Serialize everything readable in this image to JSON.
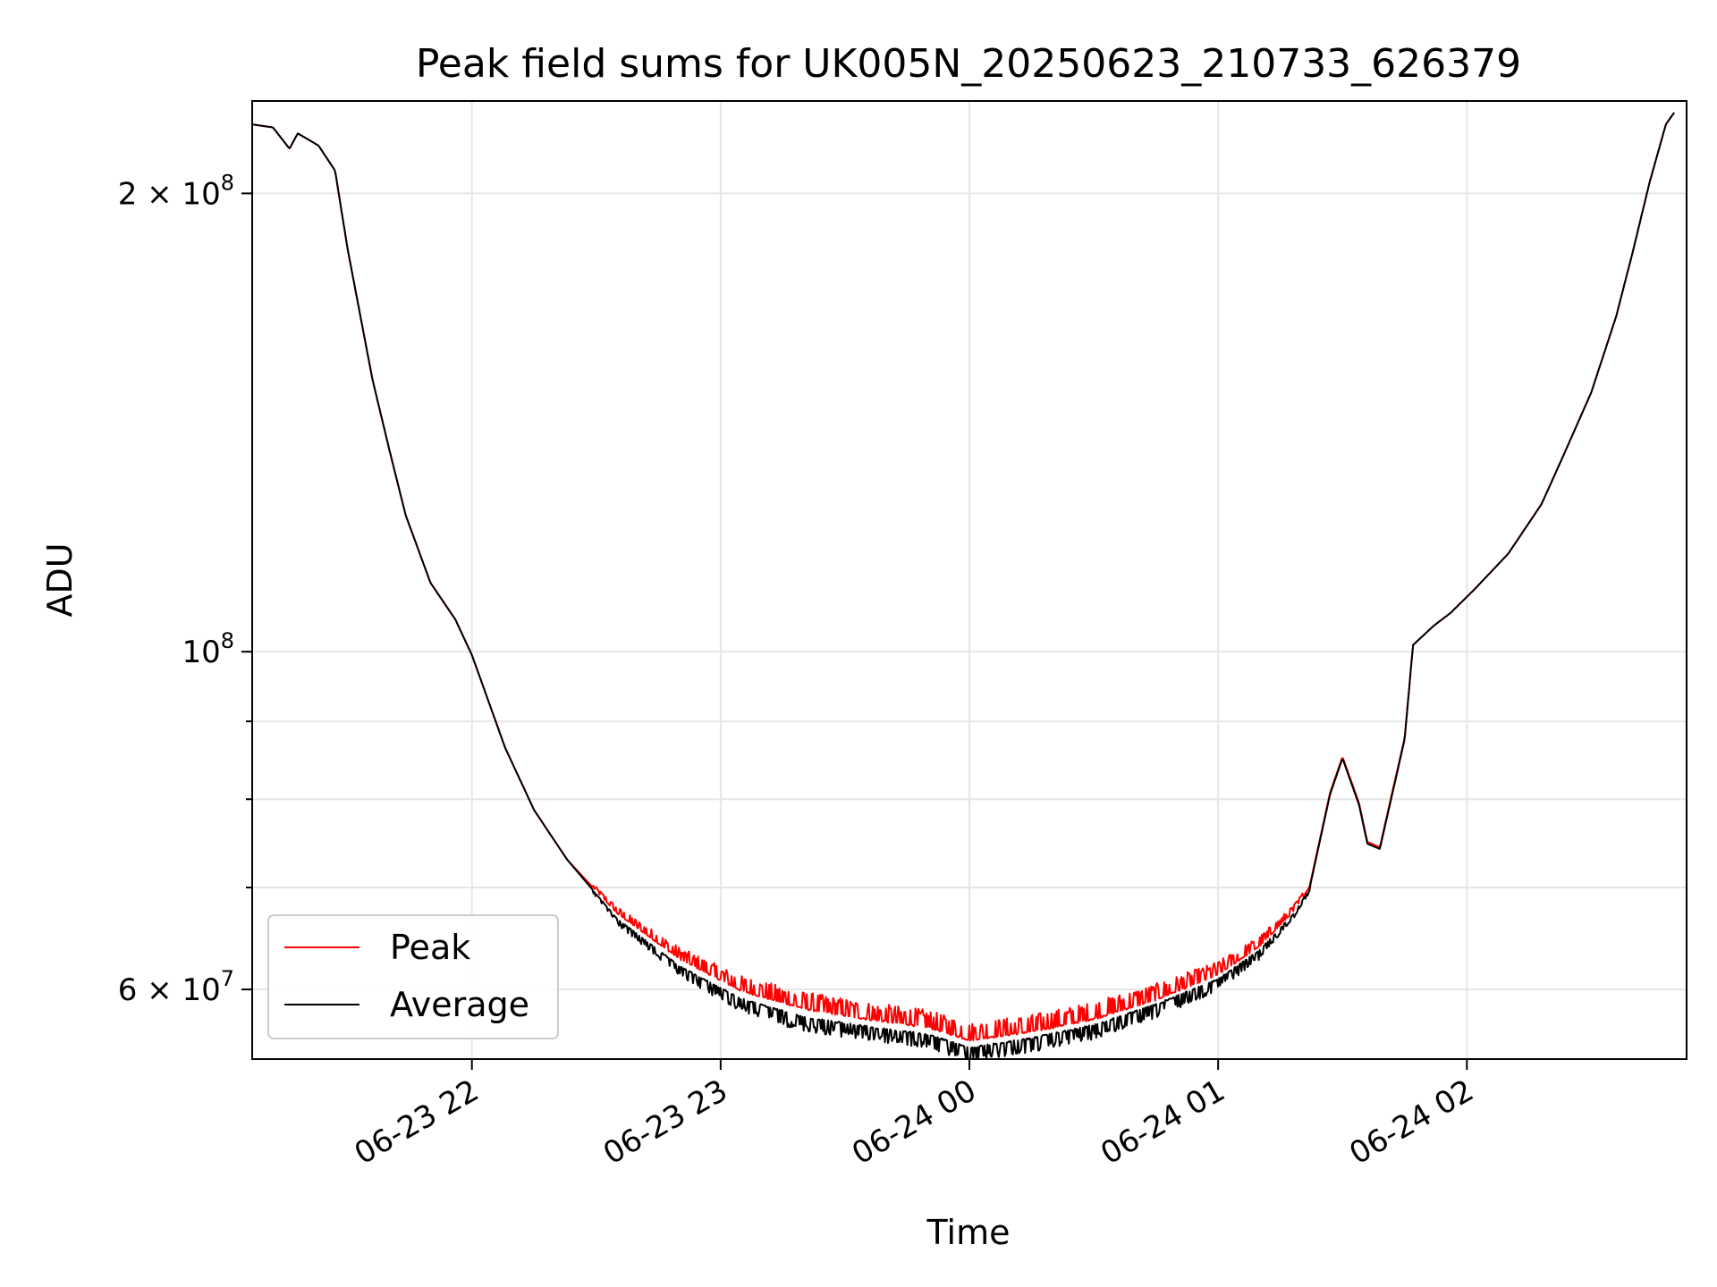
{
  "chart_data": {
    "type": "line",
    "title": "Peak field sums for UK005N_20250623_210733_626379",
    "xlabel": "Time",
    "ylabel": "ADU",
    "x_scale": "time",
    "y_scale": "log",
    "xlim": [
      "2025-06-23 21:07",
      "2025-06-24 02:53"
    ],
    "ylim": [
      54000000,
      230000000
    ],
    "grid": true,
    "legend_position": "lower-left",
    "x_ticks": [
      {
        "value": "2025-06-23 22:00",
        "label": "06-23 22"
      },
      {
        "value": "2025-06-23 23:00",
        "label": "06-23 23"
      },
      {
        "value": "2025-06-24 00:00",
        "label": "06-24 00"
      },
      {
        "value": "2025-06-24 01:00",
        "label": "06-24 01"
      },
      {
        "value": "2025-06-24 02:00",
        "label": "06-24 02"
      }
    ],
    "y_ticks": [
      {
        "value": 200000000,
        "label_base": "2 × 10",
        "label_exp": "8"
      },
      {
        "value": 100000000,
        "label_base": "10",
        "label_exp": "8"
      },
      {
        "value": 60000000,
        "label_base": "6 × 10",
        "label_exp": "7"
      }
    ],
    "y_minor_ticks": [
      70000000,
      80000000,
      90000000
    ],
    "series": [
      {
        "name": "Peak",
        "color": "#ff0000",
        "noise": "up",
        "x": [
          "2025-06-23 21:07",
          "2025-06-23 21:12",
          "2025-06-23 21:16",
          "2025-06-23 21:18",
          "2025-06-23 21:23",
          "2025-06-23 21:27",
          "2025-06-23 21:30",
          "2025-06-23 21:36",
          "2025-06-23 21:40",
          "2025-06-23 21:44",
          "2025-06-23 21:50",
          "2025-06-23 21:56",
          "2025-06-23 22:00",
          "2025-06-23 22:08",
          "2025-06-23 22:15",
          "2025-06-23 22:23",
          "2025-06-23 22:35",
          "2025-06-23 22:50",
          "2025-06-23 23:05",
          "2025-06-23 23:20",
          "2025-06-23 23:35",
          "2025-06-23 23:50",
          "2025-06-24 00:00",
          "2025-06-24 00:15",
          "2025-06-24 00:30",
          "2025-06-24 00:45",
          "2025-06-24 01:00",
          "2025-06-24 01:10",
          "2025-06-24 01:18",
          "2025-06-24 01:22",
          "2025-06-24 01:27",
          "2025-06-24 01:30",
          "2025-06-24 01:34",
          "2025-06-24 01:36",
          "2025-06-24 01:39",
          "2025-06-24 01:45",
          "2025-06-24 01:47",
          "2025-06-24 01:52",
          "2025-06-24 01:56",
          "2025-06-24 02:02",
          "2025-06-24 02:10",
          "2025-06-24 02:18",
          "2025-06-24 02:23",
          "2025-06-24 02:30",
          "2025-06-24 02:36",
          "2025-06-24 02:40",
          "2025-06-24 02:44",
          "2025-06-24 02:48",
          "2025-06-24 02:50"
        ],
        "y": [
          222000000,
          221000000,
          214000000,
          219000000,
          215000000,
          207000000,
          184000000,
          151000000,
          136000000,
          123000000,
          111000000,
          105000000,
          99500000,
          86500000,
          78700000,
          73000000,
          67300000,
          62800000,
          59800000,
          58200000,
          57300000,
          56600000,
          55500000,
          56200000,
          57300000,
          59000000,
          61300000,
          64000000,
          67400000,
          70000000,
          80800000,
          85300000,
          79500000,
          75000000,
          74400000,
          87800000,
          101000000,
          104000000,
          106000000,
          110000000,
          116000000,
          125000000,
          134000000,
          148000000,
          166000000,
          183000000,
          203000000,
          222000000,
          226000000
        ]
      },
      {
        "name": "Average",
        "color": "#000000",
        "noise": "down",
        "x": [
          "2025-06-23 21:07",
          "2025-06-23 21:12",
          "2025-06-23 21:16",
          "2025-06-23 21:18",
          "2025-06-23 21:23",
          "2025-06-23 21:27",
          "2025-06-23 21:30",
          "2025-06-23 21:36",
          "2025-06-23 21:40",
          "2025-06-23 21:44",
          "2025-06-23 21:50",
          "2025-06-23 21:56",
          "2025-06-23 22:00",
          "2025-06-23 22:08",
          "2025-06-23 22:15",
          "2025-06-23 22:23",
          "2025-06-23 22:35",
          "2025-06-23 22:50",
          "2025-06-23 23:05",
          "2025-06-23 23:20",
          "2025-06-23 23:35",
          "2025-06-23 23:50",
          "2025-06-24 00:00",
          "2025-06-24 00:15",
          "2025-06-24 00:30",
          "2025-06-24 00:45",
          "2025-06-24 01:00",
          "2025-06-24 01:10",
          "2025-06-24 01:18",
          "2025-06-24 01:22",
          "2025-06-24 01:27",
          "2025-06-24 01:30",
          "2025-06-24 01:34",
          "2025-06-24 01:36",
          "2025-06-24 01:39",
          "2025-06-24 01:45",
          "2025-06-24 01:47",
          "2025-06-24 01:52",
          "2025-06-24 01:56",
          "2025-06-24 02:02",
          "2025-06-24 02:10",
          "2025-06-24 02:18",
          "2025-06-24 02:23",
          "2025-06-24 02:30",
          "2025-06-24 02:36",
          "2025-06-24 02:40",
          "2025-06-24 02:44",
          "2025-06-24 02:48",
          "2025-06-24 02:50"
        ],
        "y": [
          222000000,
          221000000,
          214000000,
          219000000,
          215000000,
          207000000,
          184000000,
          151000000,
          136000000,
          123000000,
          111000000,
          105000000,
          99500000,
          86500000,
          78700000,
          73000000,
          66800000,
          62200000,
          59200000,
          57600000,
          56800000,
          56100000,
          55000000,
          55800000,
          56900000,
          58700000,
          61000000,
          63700000,
          67200000,
          69800000,
          80600000,
          85100000,
          79300000,
          74800000,
          74200000,
          87600000,
          101000000,
          104000000,
          106000000,
          110000000,
          116000000,
          125000000,
          134000000,
          148000000,
          166000000,
          183000000,
          203000000,
          222000000,
          226000000
        ]
      }
    ]
  }
}
